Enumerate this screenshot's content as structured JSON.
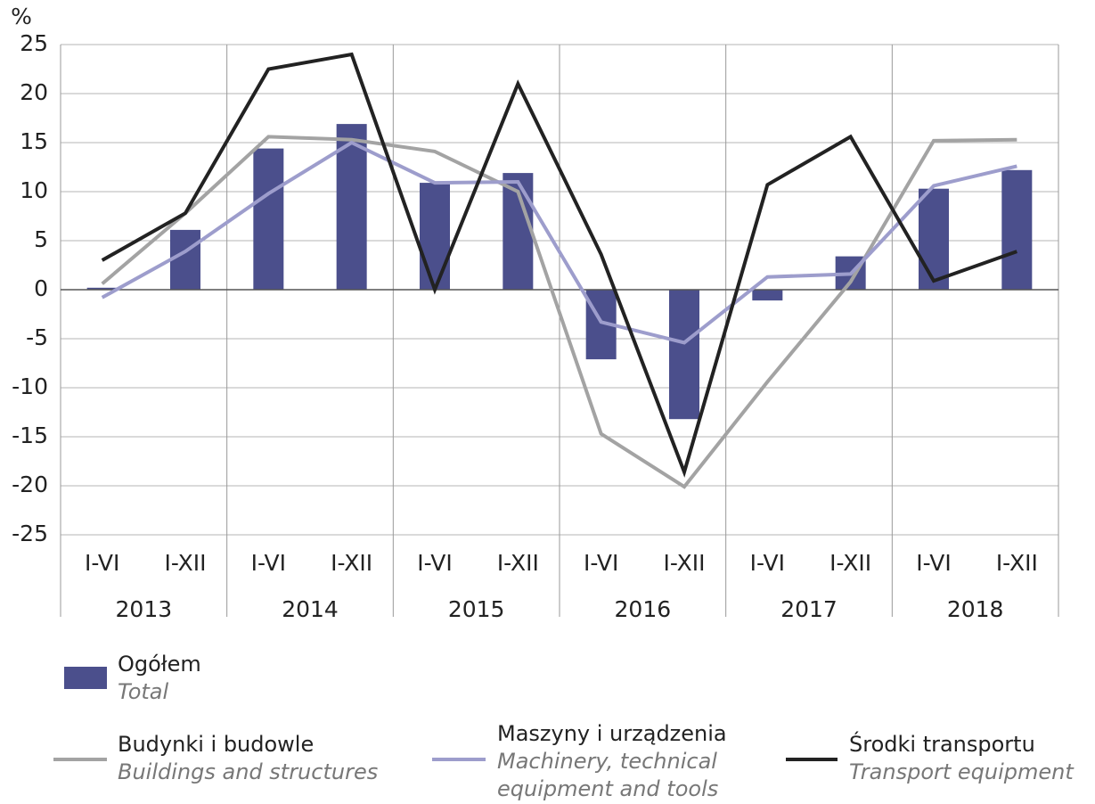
{
  "chart_data": {
    "type": "bar",
    "y_unit": "%",
    "categories": [
      "I-VI",
      "I-XII",
      "I-VI",
      "I-XII",
      "I-VI",
      "I-XII",
      "I-VI",
      "I-XII",
      "I-VI",
      "I-XII",
      "I-VI",
      "I-XII"
    ],
    "groups": [
      "2013",
      "2014",
      "2015",
      "2016",
      "2017",
      "2018"
    ],
    "ylim": [
      -25,
      25
    ],
    "yticks": [
      25,
      20,
      15,
      10,
      5,
      0,
      -5,
      -10,
      -15,
      -20,
      -25
    ],
    "grid": true,
    "series": [
      {
        "name": "Ogółem",
        "name_en": "Total",
        "type": "bar",
        "color": "#4b4f8c",
        "values": [
          0.2,
          6.1,
          14.4,
          16.9,
          10.9,
          11.9,
          -7.1,
          -13.2,
          -1.1,
          3.4,
          10.3,
          12.2
        ]
      },
      {
        "name": "Budynki i budowle",
        "name_en": "Buildings and structures",
        "type": "line",
        "color": "#a3a3a3",
        "values": [
          0.6,
          7.8,
          15.6,
          15.3,
          14.1,
          10.0,
          -14.7,
          -20.1,
          -9.4,
          0.8,
          15.2,
          15.3
        ]
      },
      {
        "name": "Maszyny i urządzenia",
        "name_en": "Machinery, technical equipment and tools",
        "type": "line",
        "color": "#9d9dcc",
        "values": [
          -0.8,
          3.9,
          9.8,
          15.0,
          10.9,
          11.0,
          -3.3,
          -5.4,
          1.3,
          1.6,
          10.6,
          12.6
        ]
      },
      {
        "name": "Środki transportu",
        "name_en": "Transport equipment",
        "type": "line",
        "color": "#222222",
        "values": [
          3.0,
          7.8,
          22.5,
          24.0,
          0.0,
          21.0,
          3.6,
          -18.6,
          10.7,
          15.6,
          0.9,
          3.9
        ]
      }
    ]
  }
}
